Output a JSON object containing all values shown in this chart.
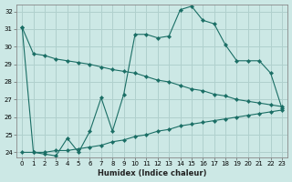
{
  "xlabel": "Humidex (Indice chaleur)",
  "bg_color": "#cce8e5",
  "grid_color": "#b0d0cd",
  "line_color": "#1a6e65",
  "xlim": [
    -0.5,
    23.5
  ],
  "ylim": [
    23.7,
    32.4
  ],
  "xticks": [
    0,
    1,
    2,
    3,
    4,
    5,
    6,
    7,
    8,
    9,
    10,
    11,
    12,
    13,
    14,
    15,
    16,
    17,
    18,
    19,
    20,
    21,
    22,
    23
  ],
  "yticks": [
    24,
    25,
    26,
    27,
    28,
    29,
    30,
    31,
    32
  ],
  "line1_x": [
    0,
    1,
    2,
    3,
    4,
    5,
    6,
    7,
    8,
    9,
    10,
    11,
    12,
    13,
    14,
    15,
    16,
    17,
    18,
    19,
    20,
    21,
    22,
    23
  ],
  "line1_y": [
    31.1,
    29.6,
    29.5,
    29.3,
    29.2,
    29.1,
    29.0,
    28.85,
    28.7,
    28.6,
    28.5,
    28.3,
    28.1,
    28.0,
    27.8,
    27.6,
    27.5,
    27.3,
    27.2,
    27.0,
    26.9,
    26.8,
    26.7,
    26.6
  ],
  "line2_x": [
    0,
    1,
    2,
    3,
    4,
    5,
    6,
    7,
    8,
    9,
    10,
    11,
    12,
    13,
    14,
    15,
    16,
    17,
    18,
    19,
    20,
    21,
    22,
    23
  ],
  "line2_y": [
    24.0,
    24.0,
    24.0,
    24.1,
    24.1,
    24.2,
    24.3,
    24.4,
    24.6,
    24.7,
    24.9,
    25.0,
    25.2,
    25.3,
    25.5,
    25.6,
    25.7,
    25.8,
    25.9,
    26.0,
    26.1,
    26.2,
    26.3,
    26.4
  ],
  "line3_x": [
    0,
    1,
    2,
    3,
    4,
    5,
    6,
    7,
    8,
    9,
    10,
    11,
    12,
    13,
    14,
    15,
    16,
    17,
    18,
    19,
    20,
    21,
    22,
    23
  ],
  "line3_y": [
    31.1,
    24.0,
    23.9,
    23.8,
    24.8,
    24.0,
    25.2,
    27.1,
    25.2,
    27.3,
    30.7,
    30.7,
    30.5,
    30.6,
    32.1,
    32.3,
    31.5,
    31.3,
    30.1,
    29.2,
    29.2,
    29.2,
    28.5,
    26.5
  ]
}
